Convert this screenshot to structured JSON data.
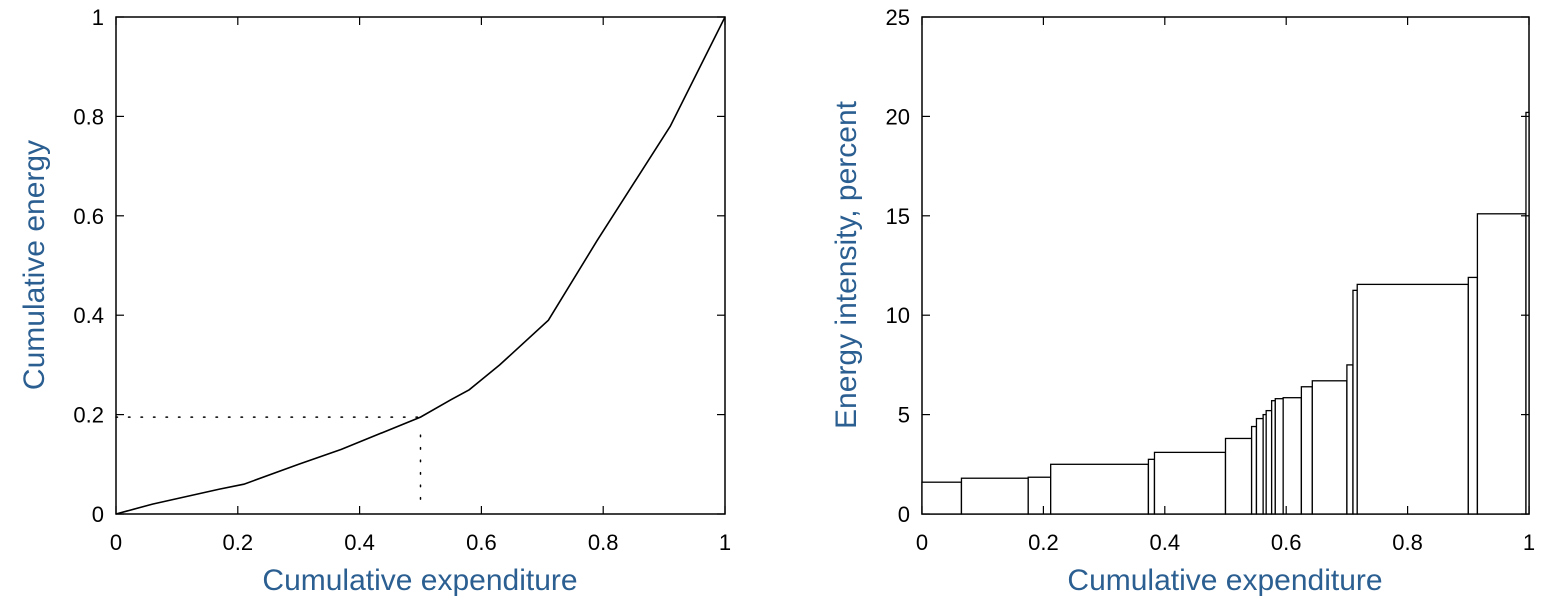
{
  "colors": {
    "label": "#2b5f91",
    "line": "#000000",
    "background": "#ffffff"
  },
  "chart_data": [
    {
      "type": "line",
      "title": "",
      "xlabel": "Cumulative expenditure",
      "ylabel": "Cumulative energy",
      "xlim": [
        0,
        1
      ],
      "ylim": [
        0,
        1
      ],
      "xticks": [
        "0",
        "0.2",
        "0.4",
        "0.6",
        "0.8",
        "1"
      ],
      "yticks": [
        "0",
        "0.2",
        "0.4",
        "0.6",
        "0.8",
        "1"
      ],
      "grid": false,
      "series": [
        {
          "x": [
            0,
            0.06,
            0.17,
            0.21,
            0.3,
            0.37,
            0.5,
            0.55,
            0.58,
            0.63,
            0.71,
            0.79,
            0.91,
            1.0
          ],
          "y": [
            0,
            0.02,
            0.05,
            0.06,
            0.1,
            0.13,
            0.195,
            0.23,
            0.25,
            0.3,
            0.39,
            0.55,
            0.78,
            1.0
          ]
        }
      ],
      "reference_lines": [
        {
          "x": [
            0,
            0.5
          ],
          "y": [
            0.195,
            0.195
          ],
          "style": "dotted"
        },
        {
          "x": [
            0.5,
            0.5
          ],
          "y": [
            0.03,
            0.17
          ],
          "style": "dotted"
        }
      ]
    },
    {
      "type": "bar",
      "title": "",
      "xlabel": "Cumulative expenditure",
      "ylabel": "Energy intensity, percent",
      "xlim": [
        0,
        1
      ],
      "ylim": [
        0,
        25
      ],
      "xticks": [
        "0",
        "0.2",
        "0.4",
        "0.6",
        "0.8",
        "1"
      ],
      "yticks": [
        "0",
        "5",
        "10",
        "15",
        "20",
        "25"
      ],
      "grid": false,
      "bars": [
        {
          "x0": 0.0,
          "x1": 0.065,
          "value": 1.6
        },
        {
          "x0": 0.065,
          "x1": 0.175,
          "value": 1.8
        },
        {
          "x0": 0.175,
          "x1": 0.212,
          "value": 1.85
        },
        {
          "x0": 0.212,
          "x1": 0.373,
          "value": 2.5
        },
        {
          "x0": 0.373,
          "x1": 0.383,
          "value": 2.75
        },
        {
          "x0": 0.383,
          "x1": 0.5,
          "value": 3.1
        },
        {
          "x0": 0.5,
          "x1": 0.543,
          "value": 3.8
        },
        {
          "x0": 0.543,
          "x1": 0.551,
          "value": 4.4
        },
        {
          "x0": 0.551,
          "x1": 0.562,
          "value": 4.8
        },
        {
          "x0": 0.562,
          "x1": 0.567,
          "value": 5.0
        },
        {
          "x0": 0.567,
          "x1": 0.576,
          "value": 5.2
        },
        {
          "x0": 0.576,
          "x1": 0.582,
          "value": 5.7
        },
        {
          "x0": 0.582,
          "x1": 0.595,
          "value": 5.8
        },
        {
          "x0": 0.595,
          "x1": 0.625,
          "value": 5.85
        },
        {
          "x0": 0.625,
          "x1": 0.643,
          "value": 6.4
        },
        {
          "x0": 0.643,
          "x1": 0.7,
          "value": 6.7
        },
        {
          "x0": 0.7,
          "x1": 0.71,
          "value": 7.5
        },
        {
          "x0": 0.71,
          "x1": 0.717,
          "value": 11.25
        },
        {
          "x0": 0.717,
          "x1": 0.9,
          "value": 11.55
        },
        {
          "x0": 0.9,
          "x1": 0.915,
          "value": 11.9
        },
        {
          "x0": 0.915,
          "x1": 0.995,
          "value": 15.1
        },
        {
          "x0": 0.995,
          "x1": 1.0,
          "value": 20.2
        }
      ]
    }
  ]
}
